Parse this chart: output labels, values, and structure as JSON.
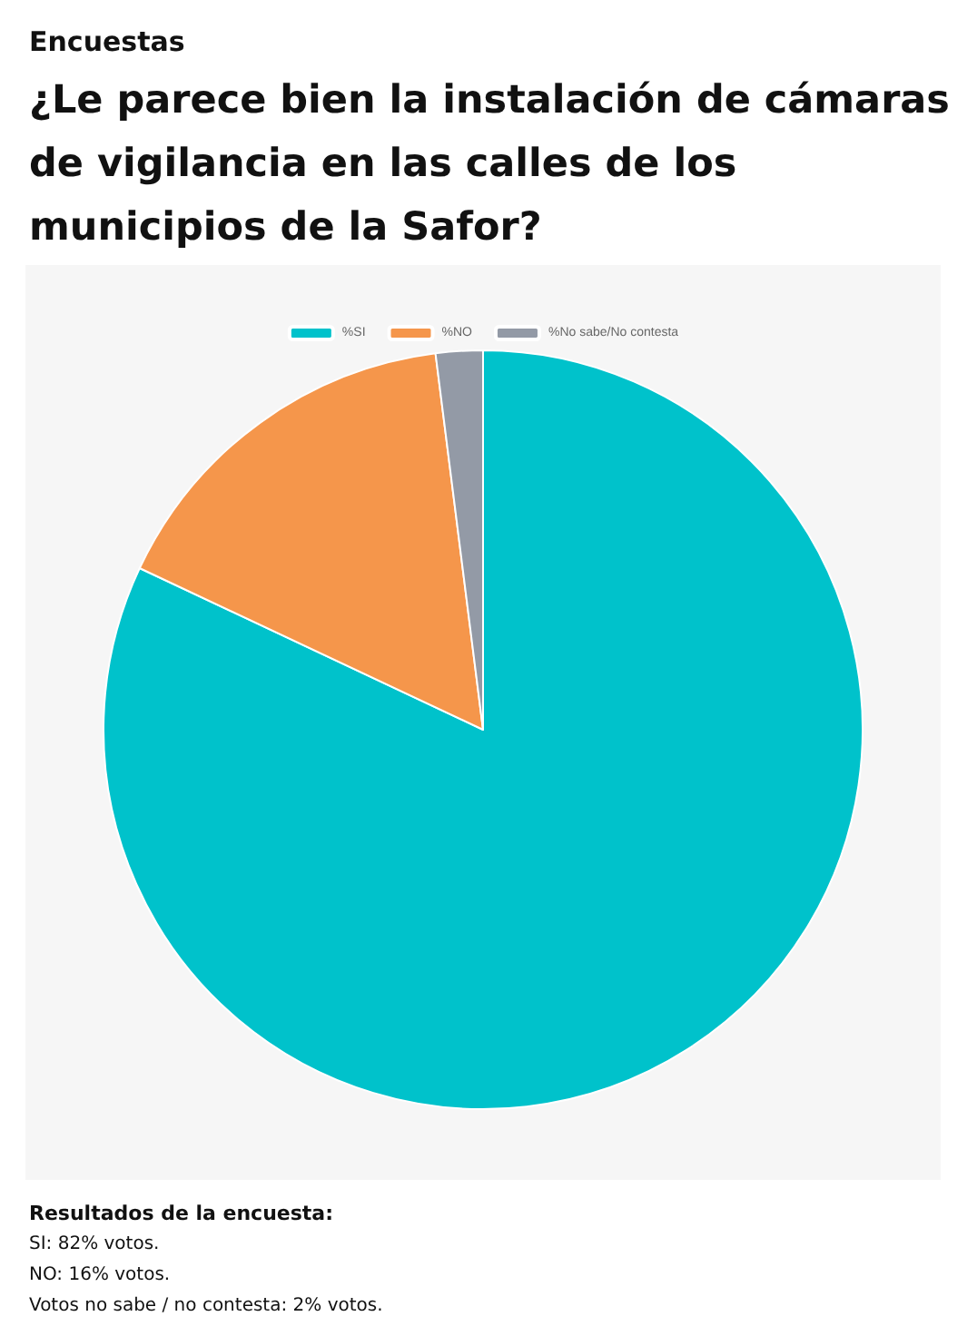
{
  "chart_data": {
    "type": "pie",
    "subtitle": "Encuestas",
    "title": "¿Le parece bien la instalación de cámaras de vigilancia en las calles de los municipios de la Safor?",
    "categories": [
      "%SI",
      "%NO",
      "%No sabe/No contesta"
    ],
    "values": [
      82,
      16,
      2
    ],
    "colors": [
      "#00c2cb",
      "#f5964b",
      "#939aa6"
    ],
    "legend": "top",
    "annotations": [
      "Resultados de la encuesta:",
      "SI: 82% votos.",
      "NO: 16% votos.",
      "Votos no sabe / no contesta: 2% votos."
    ]
  }
}
